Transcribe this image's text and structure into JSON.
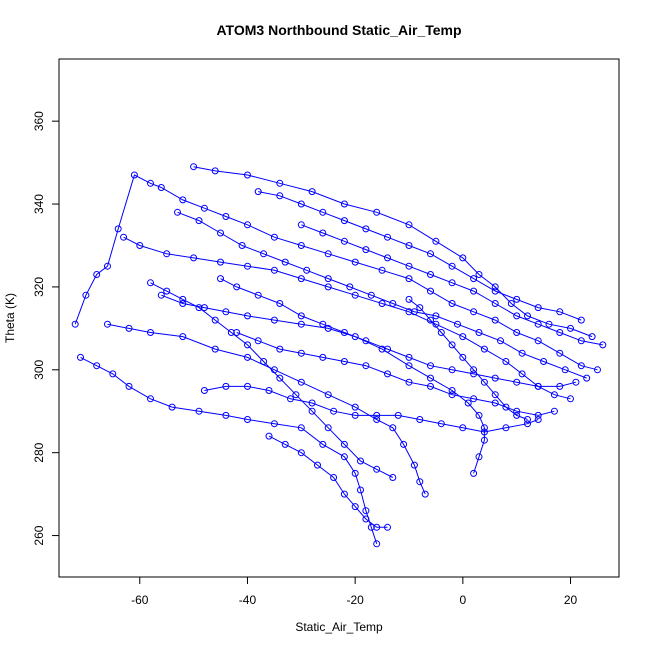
{
  "chart_data": {
    "type": "scatter",
    "subtype": "points-and-lines",
    "title": "ATOM3 Northbound Static_Air_Temp",
    "xlabel": "Static_Air_Temp",
    "ylabel": "Theta (K)",
    "xlim": [
      -75,
      29
    ],
    "ylim": [
      250,
      375
    ],
    "xticks": [
      -60,
      -40,
      -20,
      0,
      20
    ],
    "yticks": [
      260,
      280,
      300,
      320,
      340,
      360
    ],
    "grid": false,
    "legend": "none",
    "color": "#0000ff",
    "marker": "open-circle",
    "series": [
      {
        "values": [
          [
            -72,
            311
          ],
          [
            -70,
            318
          ],
          [
            -68,
            323
          ],
          [
            -66,
            325
          ],
          [
            -64,
            334
          ],
          [
            -61,
            347
          ],
          [
            -58,
            345
          ],
          [
            -56,
            344
          ],
          [
            -52,
            341
          ],
          [
            -48,
            339
          ],
          [
            -44,
            337
          ],
          [
            -40,
            335
          ],
          [
            -35,
            332
          ],
          [
            -30,
            330
          ],
          [
            -25,
            328
          ],
          [
            -20,
            326
          ],
          [
            -15,
            324
          ],
          [
            -10,
            322
          ],
          [
            -6,
            319
          ],
          [
            -2,
            316
          ],
          [
            2,
            314
          ],
          [
            6,
            312
          ],
          [
            10,
            309
          ],
          [
            14,
            307
          ],
          [
            18,
            304
          ],
          [
            22,
            301
          ],
          [
            25,
            300
          ]
        ]
      },
      {
        "values": [
          [
            -71,
            303
          ],
          [
            -68,
            301
          ],
          [
            -65,
            299
          ],
          [
            -62,
            296
          ],
          [
            -58,
            293
          ],
          [
            -54,
            291
          ],
          [
            -49,
            290
          ],
          [
            -44,
            289
          ],
          [
            -40,
            288
          ],
          [
            -35,
            287
          ],
          [
            -30,
            286
          ],
          [
            -26,
            282
          ],
          [
            -22,
            279
          ],
          [
            -20,
            275
          ],
          [
            -19,
            271
          ],
          [
            -18,
            266
          ],
          [
            -17,
            262
          ],
          [
            -16,
            258
          ]
        ]
      },
      {
        "values": [
          [
            -66,
            311
          ],
          [
            -62,
            310
          ],
          [
            -58,
            309
          ],
          [
            -52,
            308
          ],
          [
            -46,
            305
          ],
          [
            -40,
            303
          ],
          [
            -35,
            300
          ],
          [
            -30,
            297
          ],
          [
            -25,
            294
          ],
          [
            -20,
            291
          ],
          [
            -16,
            288
          ],
          [
            -13,
            286
          ],
          [
            -11,
            282
          ],
          [
            -9,
            277
          ],
          [
            -8,
            273
          ],
          [
            -7,
            270
          ]
        ]
      },
      {
        "values": [
          [
            -50,
            349
          ],
          [
            -46,
            348
          ],
          [
            -40,
            347
          ],
          [
            -34,
            345
          ],
          [
            -28,
            343
          ],
          [
            -22,
            340
          ],
          [
            -16,
            338
          ],
          [
            -10,
            335
          ],
          [
            -5,
            331
          ],
          [
            0,
            327
          ],
          [
            3,
            323
          ],
          [
            6,
            320
          ],
          [
            9,
            316
          ],
          [
            12,
            313
          ],
          [
            16,
            311
          ],
          [
            20,
            310
          ],
          [
            24,
            308
          ]
        ]
      },
      {
        "values": [
          [
            -63,
            332
          ],
          [
            -60,
            330
          ],
          [
            -55,
            328
          ],
          [
            -50,
            327
          ],
          [
            -45,
            326
          ],
          [
            -40,
            325
          ],
          [
            -35,
            324
          ],
          [
            -30,
            322
          ],
          [
            -25,
            320
          ],
          [
            -20,
            318
          ],
          [
            -15,
            316
          ],
          [
            -10,
            314
          ],
          [
            -5,
            311
          ],
          [
            0,
            308
          ],
          [
            4,
            305
          ],
          [
            8,
            302
          ],
          [
            11,
            299
          ],
          [
            14,
            296
          ],
          [
            17,
            294
          ],
          [
            20,
            293
          ]
        ]
      },
      {
        "values": [
          [
            -56,
            318
          ],
          [
            -52,
            316
          ],
          [
            -48,
            315
          ],
          [
            -44,
            314
          ],
          [
            -40,
            313
          ],
          [
            -35,
            312
          ],
          [
            -30,
            311
          ],
          [
            -25,
            310
          ],
          [
            -20,
            308
          ],
          [
            -15,
            305
          ],
          [
            -10,
            301
          ],
          [
            -6,
            298
          ],
          [
            -2,
            295
          ],
          [
            1,
            292
          ],
          [
            3,
            289
          ],
          [
            4,
            286
          ],
          [
            4,
            283
          ],
          [
            3,
            279
          ],
          [
            2,
            275
          ]
        ]
      },
      {
        "values": [
          [
            -53,
            338
          ],
          [
            -49,
            336
          ],
          [
            -45,
            333
          ],
          [
            -41,
            330
          ],
          [
            -37,
            328
          ],
          [
            -33,
            326
          ],
          [
            -29,
            324
          ],
          [
            -25,
            322
          ],
          [
            -21,
            320
          ],
          [
            -17,
            318
          ],
          [
            -13,
            316
          ],
          [
            -9,
            314
          ],
          [
            -5,
            313
          ],
          [
            -1,
            311
          ],
          [
            3,
            309
          ],
          [
            7,
            307
          ],
          [
            11,
            304
          ],
          [
            15,
            302
          ],
          [
            19,
            300
          ],
          [
            23,
            298
          ]
        ]
      },
      {
        "values": [
          [
            -48,
            295
          ],
          [
            -44,
            296
          ],
          [
            -40,
            296
          ],
          [
            -36,
            295
          ],
          [
            -32,
            293
          ],
          [
            -28,
            292
          ],
          [
            -24,
            290
          ],
          [
            -20,
            289
          ],
          [
            -16,
            289
          ],
          [
            -12,
            289
          ],
          [
            -8,
            288
          ],
          [
            -4,
            287
          ],
          [
            0,
            286
          ],
          [
            4,
            285
          ],
          [
            8,
            286
          ],
          [
            12,
            287
          ],
          [
            14,
            288
          ]
        ]
      },
      {
        "values": [
          [
            -45,
            322
          ],
          [
            -42,
            320
          ],
          [
            -38,
            318
          ],
          [
            -34,
            316
          ],
          [
            -30,
            313
          ],
          [
            -26,
            311
          ],
          [
            -22,
            309
          ],
          [
            -18,
            307
          ],
          [
            -14,
            305
          ],
          [
            -10,
            303
          ],
          [
            -6,
            301
          ],
          [
            -2,
            300
          ],
          [
            2,
            299
          ],
          [
            6,
            298
          ],
          [
            10,
            297
          ],
          [
            14,
            296
          ],
          [
            18,
            296
          ],
          [
            21,
            297
          ]
        ]
      },
      {
        "values": [
          [
            -38,
            343
          ],
          [
            -34,
            342
          ],
          [
            -30,
            340
          ],
          [
            -26,
            338
          ],
          [
            -22,
            336
          ],
          [
            -18,
            334
          ],
          [
            -14,
            332
          ],
          [
            -10,
            330
          ],
          [
            -6,
            328
          ],
          [
            -2,
            325
          ],
          [
            2,
            322
          ],
          [
            6,
            319
          ],
          [
            10,
            317
          ],
          [
            14,
            315
          ],
          [
            18,
            314
          ],
          [
            22,
            312
          ]
        ]
      },
      {
        "values": [
          [
            -36,
            284
          ],
          [
            -33,
            282
          ],
          [
            -30,
            280
          ],
          [
            -27,
            277
          ],
          [
            -24,
            274
          ],
          [
            -22,
            270
          ],
          [
            -20,
            267
          ],
          [
            -18,
            264
          ],
          [
            -16,
            262
          ],
          [
            -14,
            262
          ]
        ]
      },
      {
        "values": [
          [
            -42,
            309
          ],
          [
            -38,
            307
          ],
          [
            -34,
            305
          ],
          [
            -30,
            304
          ],
          [
            -26,
            303
          ],
          [
            -22,
            302
          ],
          [
            -18,
            301
          ],
          [
            -14,
            299
          ],
          [
            -10,
            297
          ],
          [
            -6,
            296
          ],
          [
            -2,
            294
          ],
          [
            2,
            293
          ],
          [
            6,
            292
          ],
          [
            10,
            290
          ],
          [
            14,
            289
          ],
          [
            17,
            290
          ]
        ]
      },
      {
        "values": [
          [
            -30,
            335
          ],
          [
            -26,
            333
          ],
          [
            -22,
            331
          ],
          [
            -18,
            329
          ],
          [
            -14,
            327
          ],
          [
            -10,
            325
          ],
          [
            -6,
            323
          ],
          [
            -2,
            321
          ],
          [
            2,
            319
          ],
          [
            6,
            316
          ],
          [
            10,
            313
          ],
          [
            14,
            311
          ],
          [
            18,
            309
          ],
          [
            22,
            307
          ],
          [
            26,
            306
          ]
        ]
      },
      {
        "values": [
          [
            -10,
            317
          ],
          [
            -8,
            315
          ],
          [
            -6,
            312
          ],
          [
            -4,
            309
          ],
          [
            -2,
            306
          ],
          [
            0,
            303
          ],
          [
            2,
            300
          ],
          [
            4,
            297
          ],
          [
            6,
            294
          ],
          [
            8,
            291
          ],
          [
            10,
            289
          ],
          [
            12,
            288
          ]
        ]
      },
      {
        "values": [
          [
            -58,
            321
          ],
          [
            -55,
            319
          ],
          [
            -52,
            317
          ],
          [
            -49,
            315
          ],
          [
            -46,
            312
          ],
          [
            -43,
            309
          ],
          [
            -40,
            306
          ],
          [
            -37,
            302
          ],
          [
            -34,
            298
          ],
          [
            -31,
            294
          ],
          [
            -28,
            290
          ],
          [
            -25,
            286
          ],
          [
            -22,
            282
          ],
          [
            -19,
            278
          ],
          [
            -16,
            276
          ],
          [
            -13,
            274
          ]
        ]
      }
    ]
  }
}
